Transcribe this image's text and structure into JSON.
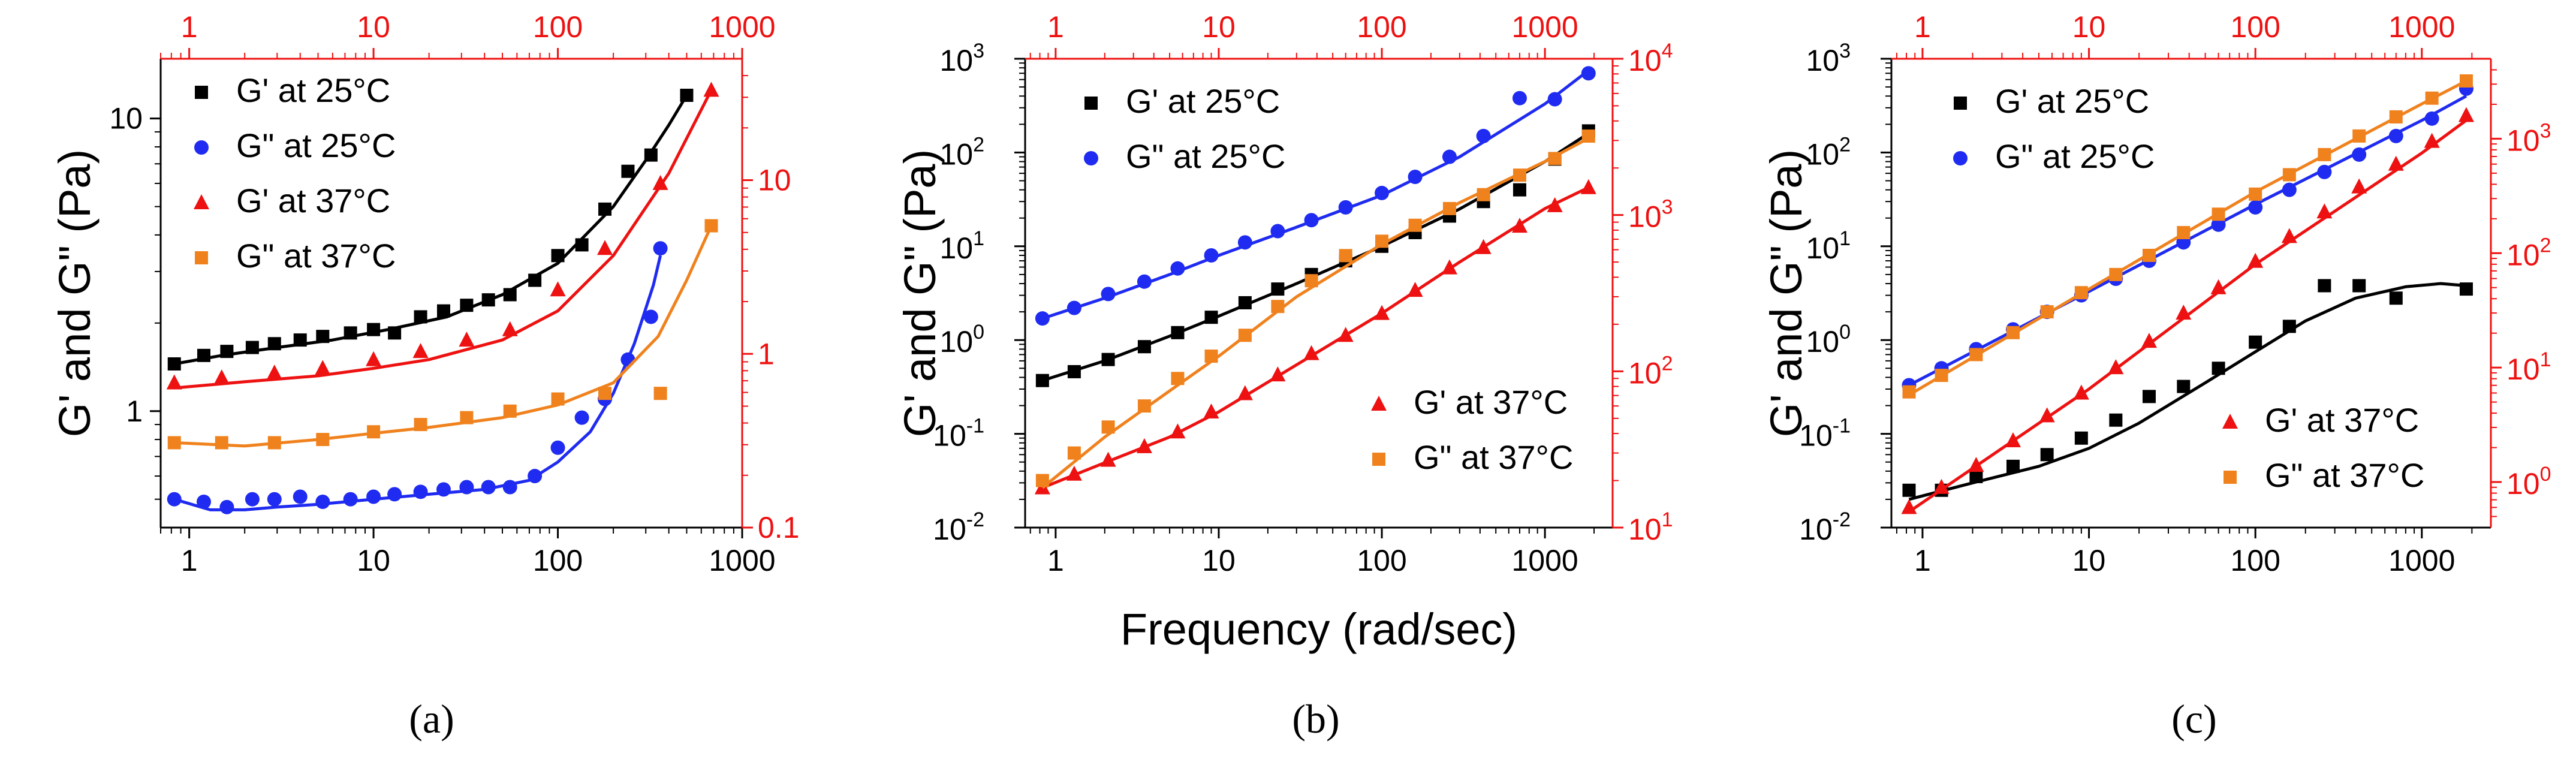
{
  "figure": {
    "colors": {
      "black": "#000000",
      "blue": "#1f2bf0",
      "red": "#ee1111",
      "orange": "#f0821e",
      "axis_right": "#ee1111"
    }
  },
  "chart_data": [
    {
      "id": "a",
      "type": "scatter",
      "panel_label": "(a)",
      "xlabel": "",
      "ylabel": "G' and G\" (Pa)",
      "xscale": "log",
      "yscale": "log",
      "xlim": [
        0.7,
        1000
      ],
      "ylim": [
        0.4,
        16
      ],
      "x_ticks": [
        1,
        10,
        100,
        1000
      ],
      "x_tick_labels": [
        "1",
        "10",
        "100",
        "1000"
      ],
      "y_ticks": [
        1,
        10
      ],
      "y_tick_labels": [
        "1",
        "10"
      ],
      "top_axis": {
        "ticks": [
          1,
          10,
          100,
          1000
        ],
        "tick_labels": [
          "1",
          "10",
          "100",
          "1000"
        ]
      },
      "right_axis": {
        "ylim": [
          0.1,
          50
        ],
        "ticks": [
          0.1,
          1,
          10
        ],
        "tick_labels": [
          "0.1",
          "1",
          "10"
        ]
      },
      "legend_position": "top-left",
      "series": [
        {
          "name": "G' at 25°C",
          "color": "#000000",
          "marker": "square",
          "axis": "left",
          "x": [
            0.83,
            1.2,
            1.6,
            2.2,
            2.9,
            4,
            5.3,
            7.5,
            10,
            13,
            18,
            24,
            32,
            42,
            55,
            75,
            100,
            135,
            180,
            240,
            320,
            500
          ],
          "y": [
            1.45,
            1.55,
            1.6,
            1.65,
            1.7,
            1.75,
            1.8,
            1.85,
            1.9,
            1.85,
            2.1,
            2.2,
            2.3,
            2.4,
            2.5,
            2.8,
            3.4,
            3.7,
            4.9,
            6.6,
            7.5,
            12
          ],
          "curve_x": [
            0.83,
            1.5,
            3,
            6,
            12,
            25,
            50,
            100,
            200,
            300,
            400,
            500
          ],
          "curve_y": [
            1.45,
            1.55,
            1.65,
            1.75,
            1.9,
            2.1,
            2.5,
            3.2,
            5,
            7.2,
            9.5,
            12
          ]
        },
        {
          "name": "G\" at 25°C",
          "color": "#1f2bf0",
          "marker": "circle",
          "axis": "left",
          "x": [
            0.83,
            1.2,
            1.6,
            2.2,
            2.9,
            4,
            5.3,
            7.5,
            10,
            13,
            18,
            24,
            32,
            42,
            55,
            75,
            100,
            135,
            180,
            240,
            320,
            360
          ],
          "y": [
            0.5,
            0.49,
            0.47,
            0.5,
            0.5,
            0.51,
            0.49,
            0.5,
            0.51,
            0.52,
            0.53,
            0.54,
            0.55,
            0.55,
            0.55,
            0.6,
            0.75,
            0.95,
            1.1,
            1.5,
            2.1,
            3.6
          ],
          "curve_x": [
            0.83,
            1.3,
            2,
            3,
            5,
            10,
            20,
            40,
            70,
            100,
            150,
            200,
            260,
            330,
            360
          ],
          "curve_y": [
            0.5,
            0.46,
            0.46,
            0.47,
            0.48,
            0.5,
            0.52,
            0.54,
            0.58,
            0.67,
            0.85,
            1.15,
            1.7,
            2.7,
            3.4
          ]
        },
        {
          "name": "G' at 37°C",
          "color": "#ee1111",
          "marker": "triangle",
          "axis": "left",
          "x": [
            0.83,
            1.5,
            2.9,
            5.3,
            10,
            18,
            32,
            55,
            100,
            180,
            360,
            680
          ],
          "y": [
            1.25,
            1.3,
            1.35,
            1.4,
            1.5,
            1.6,
            1.75,
            1.9,
            2.6,
            3.6,
            6,
            12.5
          ],
          "curve_x": [
            0.83,
            2,
            5,
            10,
            20,
            50,
            100,
            200,
            400,
            680
          ],
          "curve_y": [
            1.2,
            1.26,
            1.32,
            1.4,
            1.5,
            1.75,
            2.2,
            3.4,
            6.5,
            12.5
          ]
        },
        {
          "name": "G\" at 37°C",
          "color": "#f0821e",
          "marker": "square",
          "axis": "left",
          "x": [
            0.83,
            1.5,
            2.9,
            5.3,
            10,
            18,
            32,
            55,
            100,
            180,
            360,
            680
          ],
          "y": [
            0.78,
            0.78,
            0.78,
            0.8,
            0.85,
            0.9,
            0.95,
            1.0,
            1.1,
            1.15,
            1.15,
            4.3
          ],
          "curve_x": [
            0.83,
            2,
            5,
            10,
            20,
            50,
            100,
            200,
            350,
            500,
            680
          ],
          "curve_y": [
            0.78,
            0.76,
            0.8,
            0.84,
            0.88,
            0.95,
            1.05,
            1.25,
            1.8,
            2.8,
            4.3
          ]
        }
      ]
    },
    {
      "id": "b",
      "type": "scatter",
      "panel_label": "(b)",
      "xlabel": "Frequency (rad/sec)",
      "ylabel": "G' and G\" (Pa)",
      "xscale": "log",
      "yscale": "log",
      "xlim": [
        0.65,
        2600
      ],
      "ylim": [
        0.01,
        1000
      ],
      "x_ticks": [
        1,
        10,
        100,
        1000
      ],
      "x_tick_labels": [
        "1",
        "10",
        "100",
        "1000"
      ],
      "y_ticks": [
        0.01,
        0.1,
        1,
        10,
        100,
        1000
      ],
      "y_tick_labels": [
        "10",
        "10",
        "10",
        "10",
        "10",
        "10"
      ],
      "y_tick_exponents": [
        "-2",
        "-1",
        "0",
        "1",
        "2",
        "3"
      ],
      "top_axis": {
        "ticks": [
          1,
          10,
          100,
          1000
        ],
        "tick_labels": [
          "1",
          "10",
          "100",
          "1000"
        ]
      },
      "right_axis": {
        "ylim": [
          10,
          10000
        ],
        "ticks": [
          10,
          100,
          1000,
          10000
        ],
        "tick_labels": [
          "10",
          "10",
          "10",
          "10"
        ],
        "tick_exponents": [
          "1",
          "2",
          "3",
          "4"
        ]
      },
      "legend_position": "top-left and bottom-right",
      "series": [
        {
          "name": "G' at 25°C",
          "color": "#000000",
          "marker": "square",
          "axis": "left",
          "x": [
            0.83,
            1.3,
            2.1,
            3.5,
            5.6,
            9,
            14.5,
            23,
            37,
            60,
            100,
            160,
            260,
            420,
            700,
            1150,
            1850
          ],
          "y": [
            0.37,
            0.46,
            0.62,
            0.85,
            1.2,
            1.75,
            2.5,
            3.5,
            5,
            7,
            10,
            14,
            21,
            30,
            40,
            85,
            170
          ],
          "curve_x": [
            0.83,
            2,
            5,
            10,
            30,
            100,
            300,
            1000,
            1850
          ],
          "curve_y": [
            0.37,
            0.6,
            1.1,
            1.8,
            4,
            10,
            25,
            80,
            160
          ]
        },
        {
          "name": "G\" at 25°C",
          "color": "#1f2bf0",
          "marker": "circle",
          "axis": "left",
          "x": [
            0.83,
            1.3,
            2.1,
            3.5,
            5.6,
            9,
            14.5,
            23,
            37,
            60,
            100,
            160,
            260,
            420,
            700,
            1150,
            1850
          ],
          "y": [
            1.7,
            2.2,
            3.1,
            4.2,
            5.8,
            8,
            11,
            14.5,
            19,
            26,
            37,
            55,
            90,
            150,
            380,
            370,
            700
          ],
          "curve_x": [
            0.83,
            2,
            5,
            10,
            30,
            100,
            300,
            1000,
            1850
          ],
          "curve_y": [
            1.7,
            2.8,
            5,
            8,
            16,
            35,
            90,
            330,
            750
          ]
        },
        {
          "name": "G' at 37°C",
          "color": "#ee1111",
          "marker": "triangle",
          "axis": "right",
          "x": [
            0.83,
            1.3,
            2.1,
            3.5,
            5.6,
            9,
            14.5,
            23,
            37,
            60,
            100,
            160,
            260,
            420,
            700,
            1150,
            1850
          ],
          "y": [
            18,
            22,
            27,
            33,
            41,
            55,
            72,
            95,
            130,
            170,
            235,
            330,
            460,
            620,
            850,
            1150,
            1500
          ],
          "curve_x": [
            0.83,
            2,
            5,
            10,
            30,
            100,
            300,
            1000,
            1850
          ],
          "curve_y": [
            18,
            26,
            38,
            55,
            110,
            235,
            500,
            1100,
            1500
          ]
        },
        {
          "name": "G\" at 37°C",
          "color": "#f0821e",
          "marker": "square",
          "axis": "right",
          "x": [
            0.83,
            1.3,
            2.1,
            3.5,
            5.6,
            9,
            14.5,
            23,
            37,
            60,
            100,
            160,
            260,
            420,
            700,
            1150,
            1850
          ],
          "y": [
            20,
            30,
            44,
            60,
            90,
            125,
            170,
            260,
            380,
            550,
            680,
            860,
            1100,
            1350,
            1800,
            2300,
            3200
          ],
          "curve_x": [
            0.83,
            2,
            5,
            10,
            30,
            100,
            300,
            1000,
            1850
          ],
          "curve_y": [
            18,
            38,
            75,
            125,
            300,
            650,
            1200,
            2200,
            3100
          ]
        }
      ]
    },
    {
      "id": "c",
      "type": "scatter",
      "panel_label": "(c)",
      "xlabel": "",
      "ylabel": "G' and G\" (Pa)",
      "xscale": "log",
      "yscale": "log",
      "xlim": [
        0.65,
        2600
      ],
      "ylim": [
        0.01,
        1000
      ],
      "x_ticks": [
        1,
        10,
        100,
        1000
      ],
      "x_tick_labels": [
        "1",
        "10",
        "100",
        "1000"
      ],
      "y_ticks": [
        0.01,
        0.1,
        1,
        10,
        100,
        1000
      ],
      "y_tick_labels": [
        "10",
        "10",
        "10",
        "10",
        "10",
        "10"
      ],
      "y_tick_exponents": [
        "-2",
        "-1",
        "0",
        "1",
        "2",
        "3"
      ],
      "top_axis": {
        "ticks": [
          1,
          10,
          100,
          1000
        ],
        "tick_labels": [
          "1",
          "10",
          "100",
          "1000"
        ]
      },
      "right_axis": {
        "ylim": [
          0.4,
          5000
        ],
        "ticks": [
          1,
          10,
          100,
          1000
        ],
        "tick_labels": [
          "10",
          "10",
          "10",
          "10"
        ],
        "tick_exponents": [
          "0",
          "1",
          "2",
          "3"
        ]
      },
      "legend_position": "top-left and bottom-right",
      "series": [
        {
          "name": "G' at 25°C",
          "color": "#000000",
          "marker": "square",
          "axis": "left",
          "x": [
            0.83,
            1.3,
            2.1,
            3.5,
            5.6,
            9,
            14.5,
            23,
            37,
            60,
            100,
            160,
            260,
            420,
            700,
            1850
          ],
          "y": [
            0.025,
            0.025,
            0.035,
            0.045,
            0.06,
            0.09,
            0.14,
            0.25,
            0.32,
            0.5,
            0.95,
            1.4,
            3.8,
            3.8,
            2.8,
            3.5
          ],
          "curve_x": [
            0.83,
            2,
            5,
            10,
            20,
            50,
            100,
            200,
            400,
            800,
            1300,
            1850
          ],
          "curve_y": [
            0.02,
            0.03,
            0.045,
            0.07,
            0.13,
            0.35,
            0.75,
            1.6,
            2.8,
            3.7,
            4,
            3.8
          ]
        },
        {
          "name": "G\" at 25°C",
          "color": "#1f2bf0",
          "marker": "circle",
          "axis": "left",
          "x": [
            0.83,
            1.3,
            2.1,
            3.5,
            5.6,
            9,
            14.5,
            23,
            37,
            60,
            100,
            160,
            260,
            420,
            700,
            1150,
            1850
          ],
          "y": [
            0.33,
            0.5,
            0.8,
            1.3,
            2,
            3,
            4.5,
            7,
            11,
            17,
            26,
            40,
            62,
            95,
            150,
            230,
            480
          ],
          "curve_x": [
            0.83,
            10,
            100,
            1000,
            1850
          ],
          "curve_y": [
            0.33,
            3.3,
            28,
            220,
            400
          ]
        },
        {
          "name": "G' at 37°C",
          "color": "#ee1111",
          "marker": "triangle",
          "axis": "right",
          "x": [
            0.83,
            1.3,
            2.1,
            3.5,
            5.6,
            9,
            14.5,
            23,
            37,
            60,
            100,
            160,
            260,
            420,
            700,
            1150,
            1850
          ],
          "y": [
            0.6,
            0.9,
            1.4,
            2.3,
            3.8,
            6,
            10,
            17,
            30,
            50,
            85,
            140,
            230,
            380,
            600,
            950,
            1600
          ],
          "curve_x": [
            0.83,
            10,
            100,
            1000,
            1850
          ],
          "curve_y": [
            0.55,
            6.5,
            80,
            750,
            1450
          ]
        },
        {
          "name": "G\" at 37°C",
          "color": "#f0821e",
          "marker": "square",
          "axis": "left",
          "x": [
            0.83,
            1.3,
            2.1,
            3.5,
            5.6,
            9,
            14.5,
            23,
            37,
            60,
            100,
            160,
            260,
            420,
            700,
            1150,
            1850
          ],
          "y": [
            0.28,
            0.42,
            0.7,
            1.2,
            2,
            3.2,
            5,
            8,
            14,
            22,
            36,
            58,
            95,
            150,
            240,
            380,
            580
          ],
          "curve_x": [
            0.83,
            10,
            100,
            1000,
            1850
          ],
          "curve_y": [
            0.26,
            3.5,
            38,
            330,
            580
          ]
        }
      ]
    }
  ]
}
